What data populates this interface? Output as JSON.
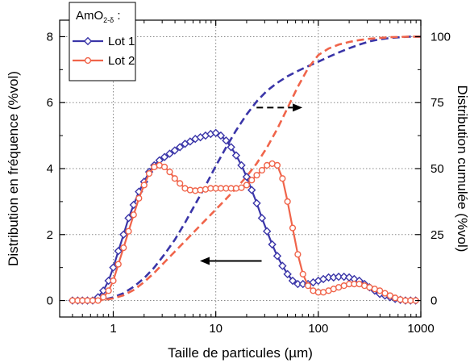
{
  "chart_data": {
    "type": "line",
    "xlabel": "Taille de particules (µm)",
    "ylabel_left": "Distribution en fréquence (%vol)",
    "ylabel_right": "Distribution cumulée (%vol)",
    "x_scale": "log",
    "xlim": [
      0.3,
      1000
    ],
    "ylim_left": [
      -0.5,
      8.5
    ],
    "ylim_right": [
      -6.25,
      106.25
    ],
    "x_ticks": [
      1,
      10,
      100,
      1000
    ],
    "x_tick_labels": [
      "1",
      "10",
      "100",
      "1000"
    ],
    "y_left_ticks": [
      0,
      2,
      4,
      6,
      8
    ],
    "y_left_tick_labels": [
      "0",
      "2",
      "4",
      "6",
      "8"
    ],
    "y_right_ticks": [
      0,
      25,
      50,
      75,
      100
    ],
    "y_right_tick_labels": [
      "0",
      "25",
      "50",
      "75",
      "100"
    ],
    "grid": true,
    "legend": {
      "title_main": "AmO",
      "title_sub": "2-δ",
      "title_suffix": " :",
      "placement": "top-left",
      "entries": [
        "Lot 1",
        "Lot 2"
      ]
    },
    "colors": {
      "lot1": "#3a35a8",
      "lot2": "#f0644a"
    },
    "series": [
      {
        "name": "Lot 1",
        "axis": "left",
        "style": "solid-markers",
        "marker": "diamond",
        "color": "#3a35a8",
        "x": [
          0.4,
          0.45,
          0.5,
          0.56,
          0.63,
          0.71,
          0.8,
          0.9,
          1.0,
          1.12,
          1.26,
          1.41,
          1.58,
          1.78,
          2.0,
          2.24,
          2.51,
          2.82,
          3.16,
          3.55,
          3.98,
          4.47,
          5.01,
          5.62,
          6.31,
          7.08,
          7.94,
          8.91,
          10.0,
          11.2,
          12.6,
          14.1,
          15.8,
          17.8,
          20.0,
          22.4,
          25.1,
          28.2,
          31.6,
          35.5,
          39.8,
          44.7,
          50.1,
          56.2,
          63.1,
          70.8,
          79.4,
          89.1,
          100,
          112,
          126,
          141,
          158,
          178,
          200,
          224,
          251,
          282,
          316,
          355,
          398,
          447,
          501,
          562,
          631,
          708,
          794,
          891
        ],
        "y": [
          0,
          0,
          0,
          0,
          0,
          0.1,
          0.3,
          0.6,
          1.0,
          1.5,
          2.0,
          2.5,
          2.9,
          3.3,
          3.6,
          3.9,
          4.1,
          4.25,
          4.35,
          4.45,
          4.55,
          4.65,
          4.75,
          4.82,
          4.9,
          4.95,
          5.0,
          5.05,
          5.08,
          5.0,
          4.85,
          4.65,
          4.4,
          4.1,
          3.75,
          3.35,
          2.95,
          2.5,
          2.1,
          1.7,
          1.35,
          1.05,
          0.8,
          0.6,
          0.5,
          0.5,
          0.5,
          0.55,
          0.6,
          0.65,
          0.7,
          0.7,
          0.72,
          0.72,
          0.7,
          0.65,
          0.6,
          0.5,
          0.4,
          0.3,
          0.2,
          0.15,
          0.1,
          0.05,
          0.02,
          0.0,
          0.0,
          0.0
        ]
      },
      {
        "name": "Lot 2",
        "axis": "left",
        "style": "solid-markers",
        "marker": "circle",
        "color": "#f0644a",
        "x": [
          0.4,
          0.45,
          0.5,
          0.56,
          0.63,
          0.71,
          0.8,
          0.9,
          1.0,
          1.12,
          1.26,
          1.41,
          1.58,
          1.78,
          2.0,
          2.24,
          2.51,
          2.82,
          3.16,
          3.55,
          3.98,
          4.47,
          5.01,
          5.62,
          6.31,
          7.08,
          7.94,
          8.91,
          10.0,
          11.2,
          12.6,
          14.1,
          15.8,
          17.8,
          20.0,
          22.4,
          25.1,
          28.2,
          31.6,
          35.5,
          39.8,
          44.7,
          50.1,
          56.2,
          63.1,
          70.8,
          79.4,
          89.1,
          100,
          112,
          126,
          141,
          158,
          178,
          200,
          224,
          251,
          282,
          316,
          355,
          398,
          447,
          501,
          562,
          631,
          708,
          794,
          891
        ],
        "y": [
          0,
          0,
          0,
          0,
          0,
          0,
          0.1,
          0.3,
          0.6,
          1.1,
          1.6,
          2.1,
          2.6,
          3.1,
          3.5,
          3.85,
          4.05,
          4.1,
          4.05,
          3.9,
          3.7,
          3.55,
          3.4,
          3.35,
          3.33,
          3.35,
          3.37,
          3.4,
          3.4,
          3.4,
          3.4,
          3.4,
          3.4,
          3.42,
          3.5,
          3.65,
          3.8,
          3.95,
          4.1,
          4.15,
          4.1,
          3.7,
          3.0,
          2.2,
          1.4,
          0.8,
          0.45,
          0.3,
          0.25,
          0.25,
          0.3,
          0.35,
          0.4,
          0.45,
          0.5,
          0.5,
          0.5,
          0.45,
          0.4,
          0.35,
          0.3,
          0.22,
          0.15,
          0.08,
          0.03,
          0.0,
          0.0,
          0.0
        ]
      },
      {
        "name": "",
        "axis": "right",
        "style": "dashed",
        "color": "#3a35a8",
        "x": [
          0.4,
          0.5,
          0.63,
          0.8,
          1.0,
          1.26,
          1.58,
          2.0,
          2.51,
          3.16,
          3.98,
          5.01,
          6.31,
          7.94,
          10.0,
          12.6,
          15.8,
          20.0,
          25.1,
          31.6,
          39.8,
          50.1,
          63.1,
          79.4,
          100,
          126,
          158,
          200,
          251,
          316,
          398,
          501,
          631,
          794,
          1000
        ],
        "y": [
          0,
          0,
          0,
          0.3,
          1.2,
          2.8,
          5.2,
          8.5,
          12.5,
          17.5,
          23.0,
          29.5,
          36.5,
          43.5,
          51.0,
          58.0,
          64.5,
          70.5,
          75.5,
          79.5,
          82.5,
          85.0,
          87.0,
          88.8,
          90.5,
          92.3,
          94.0,
          95.6,
          97.0,
          98.2,
          99.0,
          99.5,
          99.8,
          100,
          100
        ]
      },
      {
        "name": "",
        "axis": "right",
        "style": "dashed",
        "color": "#f0644a",
        "x": [
          0.4,
          0.5,
          0.63,
          0.8,
          1.0,
          1.26,
          1.58,
          2.0,
          2.51,
          3.16,
          3.98,
          5.01,
          6.31,
          7.94,
          10.0,
          12.6,
          15.8,
          20.0,
          25.1,
          31.6,
          39.8,
          50.1,
          63.1,
          79.4,
          100,
          126,
          158,
          200,
          251,
          316,
          398,
          501,
          631,
          794,
          1000
        ],
        "y": [
          0,
          0,
          0,
          0.2,
          0.8,
          2.0,
          4.0,
          7.0,
          10.5,
          14.5,
          18.5,
          22.5,
          26.5,
          30.5,
          34.5,
          38.5,
          42.5,
          47.0,
          52.0,
          58.0,
          65.0,
          73.0,
          81.0,
          88.0,
          93.0,
          95.5,
          97.0,
          98.0,
          98.7,
          99.2,
          99.5,
          99.8,
          99.9,
          100,
          100
        ]
      }
    ],
    "annotations": [
      {
        "type": "arrow",
        "style": "solid",
        "direction": "left",
        "from": [
          28,
          1.2
        ],
        "to": [
          7,
          1.2
        ],
        "meaning": "points to left axis"
      },
      {
        "type": "arrow",
        "style": "dashed",
        "direction": "right",
        "from": [
          25,
          5.85
        ],
        "to": [
          70,
          5.85
        ],
        "meaning": "points to right axis"
      }
    ]
  }
}
